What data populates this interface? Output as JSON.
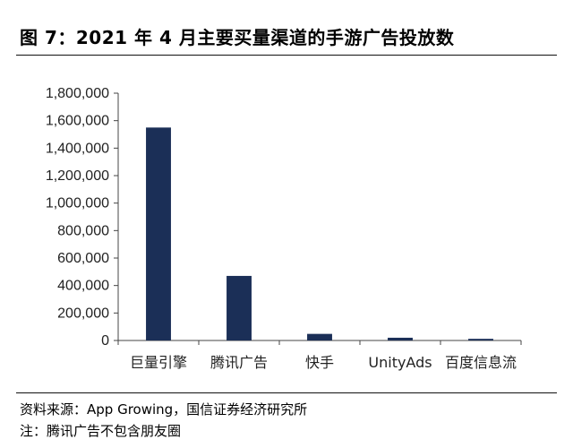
{
  "figure": {
    "title": "图 7：2021 年 4 月主要买量渠道的手游广告投放数"
  },
  "chart_data": {
    "type": "bar",
    "categories": [
      "巨量引擎",
      "腾讯广告",
      "快手",
      "UnityAds",
      "百度信息流"
    ],
    "values": [
      1550000,
      470000,
      48000,
      20000,
      12000
    ],
    "ylim": [
      0,
      1800000
    ],
    "yticks": [
      0,
      200000,
      400000,
      600000,
      800000,
      1000000,
      1200000,
      1400000,
      1600000,
      1800000
    ],
    "ytick_labels": [
      "0",
      "200,000",
      "400,000",
      "600,000",
      "800,000",
      "1,000,000",
      "1,200,000",
      "1,400,000",
      "1,600,000",
      "1,800,000"
    ],
    "bar_color": "#1b2f57",
    "grid": false,
    "legend": "none"
  },
  "footer": {
    "source": "资料来源：App Growing，国信证券经济研究所",
    "note": "注：腾讯广告不包含朋友圈"
  }
}
